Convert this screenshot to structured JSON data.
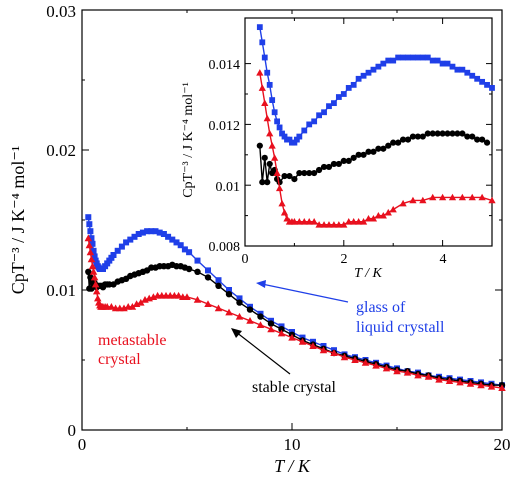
{
  "colors": {
    "blue": "#1f3fe8",
    "black": "#000000",
    "red": "#e8101e"
  },
  "chart_data": [
    {
      "type": "scatter",
      "title": "",
      "xlabel": "T / K",
      "ylabel": "CpT⁻³ / J K⁻⁴ mol⁻¹",
      "xlim": [
        0,
        20
      ],
      "ylim": [
        0,
        0.03
      ],
      "xticks": [
        0,
        10,
        20
      ],
      "yticks": [
        0,
        0.01,
        0.02,
        0.03
      ],
      "xtick_labels": [
        "0",
        "10",
        "20"
      ],
      "ytick_labels": [
        "0",
        "0.01",
        "0.02",
        "0.03"
      ],
      "grid": false,
      "annotations": [
        {
          "text": "glass of",
          "color": "blue"
        },
        {
          "text": "liquid crystall",
          "color": "blue"
        },
        {
          "text": "metastable",
          "color": "red"
        },
        {
          "text": "crystal",
          "color": "red"
        },
        {
          "text": "stable crystal",
          "color": "black"
        }
      ],
      "series": [
        {
          "color": "blue",
          "marker": "square",
          "x": [
            0.3,
            0.35,
            0.4,
            0.45,
            0.5,
            0.55,
            0.6,
            0.65,
            0.7,
            0.75,
            0.8,
            0.85,
            0.9,
            0.95,
            1.0,
            1.1,
            1.2,
            1.3,
            1.4,
            1.5,
            1.7,
            1.9,
            2.1,
            2.3,
            2.5,
            2.7,
            2.9,
            3.1,
            3.3,
            3.5,
            3.7,
            3.9,
            4.1,
            4.3,
            4.5,
            4.7,
            4.9,
            5.1,
            5.5,
            6,
            6.5,
            7,
            7.5,
            8,
            8.5,
            9,
            9.5,
            10,
            10.5,
            11,
            11.5,
            12,
            12.5,
            13,
            13.5,
            14,
            14.5,
            15,
            15.5,
            16,
            16.5,
            17,
            17.5,
            18,
            18.5,
            19,
            19.5,
            20
          ],
          "y": [
            0.0152,
            0.0147,
            0.0142,
            0.0137,
            0.0133,
            0.0128,
            0.0124,
            0.0121,
            0.0119,
            0.0117,
            0.0116,
            0.0115,
            0.0115,
            0.0115,
            0.0115,
            0.0117,
            0.0119,
            0.0121,
            0.0123,
            0.0125,
            0.0128,
            0.0131,
            0.0134,
            0.0136,
            0.0138,
            0.014,
            0.0141,
            0.0142,
            0.0142,
            0.0142,
            0.0141,
            0.014,
            0.0138,
            0.0136,
            0.0134,
            0.0132,
            0.0129,
            0.0127,
            0.0121,
            0.0114,
            0.0107,
            0.01,
            0.0094,
            0.0088,
            0.0083,
            0.0078,
            0.0074,
            0.007,
            0.0066,
            0.0063,
            0.006,
            0.0057,
            0.0054,
            0.0052,
            0.005,
            0.0048,
            0.0046,
            0.0044,
            0.0042,
            0.0041,
            0.0039,
            0.0038,
            0.0037,
            0.0036,
            0.0035,
            0.0034,
            0.0033,
            0.0032
          ]
        },
        {
          "color": "black",
          "marker": "circle",
          "x": [
            0.3,
            0.35,
            0.4,
            0.45,
            0.5,
            0.55,
            0.6,
            0.7,
            0.8,
            0.9,
            1.0,
            1.1,
            1.2,
            1.3,
            1.5,
            1.7,
            1.9,
            2.1,
            2.3,
            2.5,
            2.7,
            2.9,
            3.1,
            3.3,
            3.5,
            3.7,
            3.9,
            4.1,
            4.3,
            4.5,
            4.7,
            4.9,
            5.1,
            5.5,
            6,
            6.5,
            7,
            7.5,
            8,
            8.5,
            9,
            9.5,
            10,
            10.5,
            11,
            11.5,
            12,
            12.5,
            13,
            13.5,
            14,
            14.5,
            15,
            15.5,
            16,
            16.5,
            17,
            17.5,
            18,
            18.5,
            19,
            19.5,
            20
          ],
          "y": [
            0.0113,
            0.0101,
            0.0109,
            0.0101,
            0.0107,
            0.0104,
            0.0105,
            0.0102,
            0.0103,
            0.0103,
            0.0102,
            0.0104,
            0.0104,
            0.0104,
            0.0104,
            0.0106,
            0.0107,
            0.0108,
            0.011,
            0.0111,
            0.0112,
            0.0113,
            0.0114,
            0.0116,
            0.0116,
            0.0117,
            0.0117,
            0.0117,
            0.0118,
            0.0117,
            0.0117,
            0.0116,
            0.0115,
            0.0113,
            0.0109,
            0.0103,
            0.0097,
            0.0091,
            0.0086,
            0.0081,
            0.0076,
            0.0072,
            0.0068,
            0.0064,
            0.0061,
            0.0058,
            0.0055,
            0.0053,
            0.0051,
            0.0049,
            0.0047,
            0.0045,
            0.0043,
            0.0042,
            0.004,
            0.0039,
            0.0037,
            0.0036,
            0.0035,
            0.0034,
            0.0033,
            0.0032,
            0.0032
          ]
        },
        {
          "color": "red",
          "marker": "triangle",
          "x": [
            0.3,
            0.35,
            0.4,
            0.45,
            0.5,
            0.55,
            0.6,
            0.65,
            0.7,
            0.75,
            0.8,
            0.85,
            0.9,
            0.95,
            1.0,
            1.1,
            1.2,
            1.4,
            1.6,
            1.8,
            2.0,
            2.2,
            2.4,
            2.6,
            2.8,
            3.0,
            3.2,
            3.4,
            3.6,
            3.8,
            4.0,
            4.2,
            4.4,
            4.6,
            4.8,
            5.0,
            5.5,
            6,
            6.5,
            7,
            7.5,
            8,
            8.5,
            9,
            9.5,
            10,
            10.5,
            11,
            11.5,
            12,
            12.5,
            13,
            13.5,
            14,
            14.5,
            15,
            15.5,
            16,
            16.5,
            17,
            17.5,
            18,
            18.5,
            19,
            19.5,
            20
          ],
          "y": [
            0.0137,
            0.0132,
            0.0127,
            0.0122,
            0.0117,
            0.0113,
            0.0109,
            0.0104,
            0.0099,
            0.0094,
            0.0091,
            0.0089,
            0.0088,
            0.0088,
            0.0088,
            0.0088,
            0.0088,
            0.0088,
            0.0087,
            0.0087,
            0.0087,
            0.0088,
            0.0088,
            0.009,
            0.0091,
            0.0093,
            0.0094,
            0.0095,
            0.0096,
            0.0096,
            0.0096,
            0.0096,
            0.0096,
            0.0096,
            0.0095,
            0.0095,
            0.0093,
            0.009,
            0.0087,
            0.0084,
            0.0081,
            0.0078,
            0.0075,
            0.0072,
            0.0069,
            0.0066,
            0.0063,
            0.006,
            0.0057,
            0.0055,
            0.0052,
            0.005,
            0.0048,
            0.0046,
            0.0044,
            0.0042,
            0.0041,
            0.0039,
            0.0038,
            0.0036,
            0.0035,
            0.0034,
            0.0033,
            0.0032,
            0.0031,
            0.003
          ]
        }
      ]
    },
    {
      "type": "scatter",
      "title": "",
      "xlabel": "T / K",
      "ylabel": "CpT⁻³ / J K⁻⁴ mol⁻¹",
      "xlim": [
        0,
        5
      ],
      "ylim": [
        0.008,
        0.0155
      ],
      "xticks": [
        0,
        2,
        4
      ],
      "yticks": [
        0.008,
        0.01,
        0.012,
        0.014
      ],
      "xtick_labels": [
        "0",
        "2",
        "4"
      ],
      "ytick_labels": [
        "0.008",
        "0.01",
        "0.012",
        "0.014"
      ],
      "grid": false,
      "series": [
        {
          "color": "blue",
          "marker": "square",
          "x": [
            0.3,
            0.35,
            0.4,
            0.45,
            0.5,
            0.55,
            0.6,
            0.65,
            0.7,
            0.75,
            0.8,
            0.85,
            0.9,
            0.95,
            1.0,
            1.05,
            1.1,
            1.2,
            1.3,
            1.4,
            1.5,
            1.6,
            1.7,
            1.8,
            1.9,
            2.0,
            2.1,
            2.2,
            2.3,
            2.4,
            2.5,
            2.6,
            2.7,
            2.8,
            2.9,
            3.0,
            3.1,
            3.2,
            3.3,
            3.4,
            3.5,
            3.6,
            3.7,
            3.8,
            3.9,
            4.0,
            4.1,
            4.2,
            4.3,
            4.4,
            4.5,
            4.6,
            4.7,
            4.8,
            4.9,
            5.0
          ],
          "y": [
            0.0152,
            0.0147,
            0.0142,
            0.0137,
            0.0133,
            0.0128,
            0.0124,
            0.0121,
            0.0119,
            0.0117,
            0.0116,
            0.0115,
            0.0115,
            0.0114,
            0.0114,
            0.0115,
            0.0116,
            0.0118,
            0.012,
            0.0121,
            0.0123,
            0.0124,
            0.0126,
            0.0127,
            0.0129,
            0.013,
            0.0132,
            0.0133,
            0.0135,
            0.0136,
            0.0137,
            0.0138,
            0.0139,
            0.014,
            0.0141,
            0.0141,
            0.0142,
            0.0142,
            0.0142,
            0.0142,
            0.0142,
            0.0142,
            0.0142,
            0.0141,
            0.0141,
            0.014,
            0.014,
            0.0139,
            0.0138,
            0.0138,
            0.0137,
            0.0136,
            0.0135,
            0.0134,
            0.0133,
            0.0132
          ]
        },
        {
          "color": "black",
          "marker": "circle",
          "x": [
            0.3,
            0.35,
            0.4,
            0.45,
            0.5,
            0.55,
            0.6,
            0.65,
            0.7,
            0.8,
            0.9,
            1.0,
            1.1,
            1.2,
            1.3,
            1.4,
            1.5,
            1.6,
            1.7,
            1.8,
            1.9,
            2.0,
            2.1,
            2.2,
            2.3,
            2.4,
            2.5,
            2.6,
            2.7,
            2.8,
            2.9,
            3.0,
            3.1,
            3.2,
            3.3,
            3.4,
            3.5,
            3.6,
            3.7,
            3.8,
            3.9,
            4.0,
            4.1,
            4.2,
            4.3,
            4.4,
            4.5,
            4.6,
            4.7,
            4.8,
            4.9
          ],
          "y": [
            0.0113,
            0.0101,
            0.0109,
            0.0101,
            0.0107,
            0.0104,
            0.0105,
            0.0102,
            0.0101,
            0.0103,
            0.0103,
            0.0102,
            0.0104,
            0.0104,
            0.0104,
            0.0104,
            0.0105,
            0.0106,
            0.0106,
            0.0107,
            0.0107,
            0.0108,
            0.0108,
            0.0109,
            0.011,
            0.011,
            0.0111,
            0.0111,
            0.0112,
            0.0112,
            0.0113,
            0.0114,
            0.0114,
            0.0115,
            0.0115,
            0.0116,
            0.0116,
            0.0116,
            0.0117,
            0.0117,
            0.0117,
            0.0117,
            0.0117,
            0.0117,
            0.0117,
            0.0117,
            0.0116,
            0.0116,
            0.0115,
            0.0115,
            0.0114
          ]
        },
        {
          "color": "red",
          "marker": "triangle",
          "x": [
            0.3,
            0.35,
            0.4,
            0.45,
            0.5,
            0.55,
            0.6,
            0.65,
            0.7,
            0.75,
            0.8,
            0.85,
            0.9,
            0.95,
            1.0,
            1.1,
            1.2,
            1.3,
            1.4,
            1.5,
            1.6,
            1.7,
            1.8,
            1.9,
            2.0,
            2.1,
            2.2,
            2.3,
            2.4,
            2.5,
            2.6,
            2.7,
            2.8,
            2.9,
            3.0,
            3.2,
            3.4,
            3.6,
            3.8,
            4.0,
            4.2,
            4.4,
            4.6,
            4.8,
            5.0
          ],
          "y": [
            0.0137,
            0.0132,
            0.0127,
            0.0122,
            0.0117,
            0.0113,
            0.0109,
            0.0104,
            0.0099,
            0.0094,
            0.0091,
            0.0089,
            0.0088,
            0.0088,
            0.0088,
            0.0088,
            0.0088,
            0.0088,
            0.0088,
            0.0087,
            0.0087,
            0.0087,
            0.0087,
            0.0087,
            0.0087,
            0.0088,
            0.0088,
            0.0088,
            0.0088,
            0.0089,
            0.0089,
            0.009,
            0.009,
            0.0091,
            0.0092,
            0.0094,
            0.0095,
            0.0095,
            0.0096,
            0.0096,
            0.0096,
            0.0096,
            0.0096,
            0.0096,
            0.0095
          ]
        }
      ]
    }
  ]
}
